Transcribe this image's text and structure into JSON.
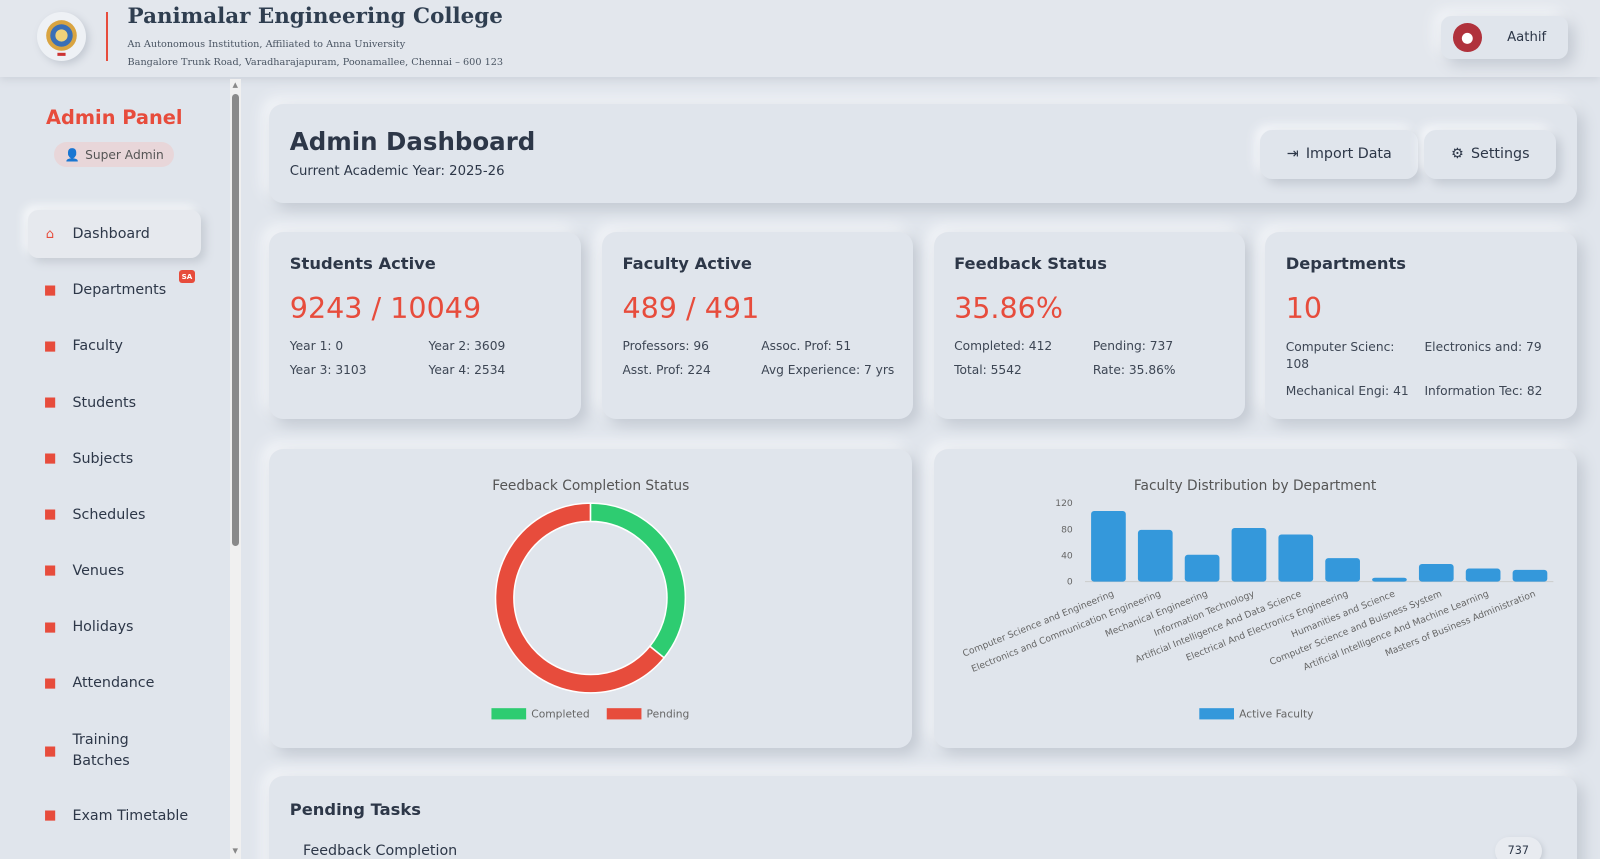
{
  "header": {
    "college": "Panimalar Engineering College",
    "tagline": "An Autonomous Institution, Affiliated to Anna University",
    "address": "Bangalore Trunk Road, Varadharajapuram, Poonamallee, Chennai – 600 123",
    "user": "Aathif"
  },
  "sidebar": {
    "title": "Admin Panel",
    "role": "Super Admin",
    "badge": "SA",
    "items": [
      {
        "label": "Dashboard",
        "icon": "home-icon"
      },
      {
        "label": "Departments",
        "icon": "building-icon"
      },
      {
        "label": "Faculty",
        "icon": "chalkboard-teacher-icon"
      },
      {
        "label": "Students",
        "icon": "graduate-icon"
      },
      {
        "label": "Subjects",
        "icon": "book-icon"
      },
      {
        "label": "Schedules",
        "icon": "calendar-icon"
      },
      {
        "label": "Venues",
        "icon": "map-pin-icon"
      },
      {
        "label": "Holidays",
        "icon": "calendar-x-icon"
      },
      {
        "label": "Attendance",
        "icon": "clipboard-icon"
      },
      {
        "label": "Training Batches",
        "icon": "users-icon"
      },
      {
        "label": "Exam Timetable",
        "icon": "calendar-grid-icon"
      }
    ]
  },
  "main": {
    "title": "Admin Dashboard",
    "academic_year": "Current Academic Year: 2025-26",
    "import_label": "Import Data",
    "settings_label": "Settings"
  },
  "cards": [
    {
      "title": "Students Active",
      "value": "9243 / 10049",
      "stats": [
        "Year 1: 0",
        "Year 2: 3609",
        "Year 3: 3103",
        "Year 4: 2534"
      ]
    },
    {
      "title": "Faculty Active",
      "value": "489 / 491",
      "stats": [
        "Professors: 96",
        "Assoc. Prof: 51",
        "Asst. Prof: 224",
        "Avg Experience: 7 yrs"
      ]
    },
    {
      "title": "Feedback Status",
      "value": "35.86%",
      "stats": [
        "Completed: 412",
        "Pending: 737",
        "Total: 5542",
        "Rate: 35.86%"
      ]
    },
    {
      "title": "Departments",
      "value": "10",
      "stats": [
        "Computer Scienc: 108",
        "Electronics and: 79",
        "Mechanical Engi: 41",
        "Information Tec: 82"
      ]
    }
  ],
  "colors": {
    "accent": "#e74c3c",
    "completed": "#2ecc71",
    "pending": "#e74c3c",
    "bar": "#3498db"
  },
  "chart_data": [
    {
      "type": "pie",
      "title": "Feedback Completion Status",
      "categories": [
        "Completed",
        "Pending"
      ],
      "values": [
        412,
        737
      ],
      "donut": true,
      "legend": "bottom"
    },
    {
      "type": "bar",
      "title": "Faculty Distribution by Department",
      "categories": [
        "Computer Science and Engineering",
        "Electronics and Communication Engineering",
        "Mechanical Engineering",
        "Information Technology",
        "Artificial Intelligence And Data Science",
        "Electrical And Electronics Engineering",
        "Humanities and Science",
        "Computer Science and Buisness System",
        "Artificial Intelligence And Machine Learning",
        "Masters of Business Administration"
      ],
      "series": [
        {
          "name": "Active Faculty",
          "values": [
            108,
            79,
            41,
            82,
            72,
            36,
            6,
            27,
            20,
            18
          ]
        }
      ],
      "yticks": [
        0,
        40,
        80,
        120
      ],
      "ylim": [
        0,
        120
      ],
      "legend": "bottom"
    }
  ],
  "pending": {
    "title": "Pending Tasks",
    "items": [
      {
        "label": "Feedback Completion",
        "count": "737"
      }
    ]
  }
}
